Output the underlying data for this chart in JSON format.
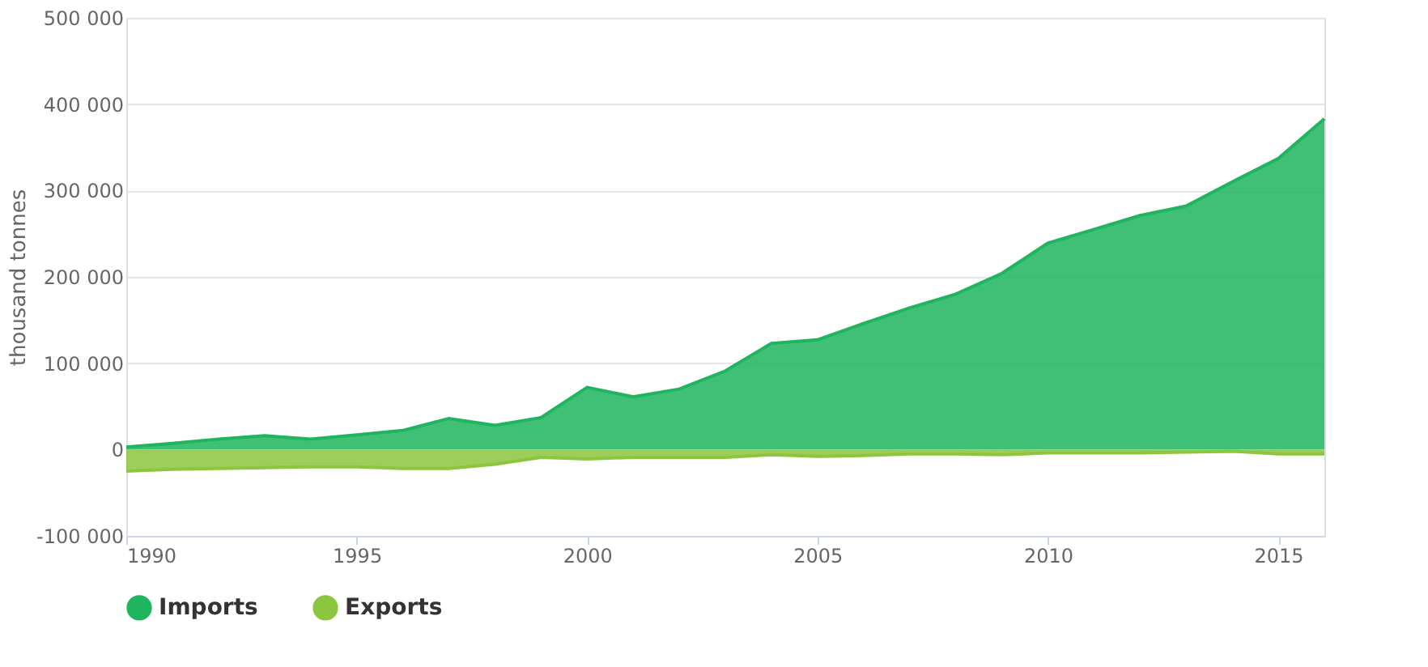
{
  "chart_data": {
    "type": "area",
    "ylabel": "thousand tonnes",
    "x": [
      1990,
      1991,
      1992,
      1993,
      1994,
      1995,
      1996,
      1997,
      1998,
      1999,
      2000,
      2001,
      2002,
      2003,
      2004,
      2005,
      2006,
      2007,
      2008,
      2009,
      2010,
      2011,
      2012,
      2013,
      2014,
      2015,
      2016
    ],
    "series": [
      {
        "name": "Imports",
        "color": "#1fb55f",
        "values": [
          3000,
          7000,
          12000,
          16000,
          12000,
          17000,
          22000,
          36000,
          28000,
          37000,
          72000,
          61000,
          70000,
          91000,
          123000,
          127000,
          146000,
          164000,
          180000,
          204000,
          239000,
          255000,
          271000,
          282000,
          310000,
          337000,
          383000
        ]
      },
      {
        "name": "Exports",
        "color": "#8cc63f",
        "values": [
          -25000,
          -23000,
          -22000,
          -21000,
          -20000,
          -20000,
          -22000,
          -22000,
          -17000,
          -9000,
          -11000,
          -9000,
          -9000,
          -9000,
          -6000,
          -8000,
          -7000,
          -5000,
          -5000,
          -6000,
          -4000,
          -4000,
          -4000,
          -3000,
          -2000,
          -5000,
          -5000
        ]
      }
    ],
    "xlim": [
      1990,
      2016
    ],
    "xticks": [
      1990,
      1995,
      2000,
      2005,
      2010,
      2015
    ],
    "ylim": [
      -100000,
      500000
    ],
    "yticks": [
      {
        "value": -100000,
        "label": "-100 000"
      },
      {
        "value": 0,
        "label": "0"
      },
      {
        "value": 100000,
        "label": "100 000"
      },
      {
        "value": 200000,
        "label": "200 000"
      },
      {
        "value": 300000,
        "label": "300 000"
      },
      {
        "value": 400000,
        "label": "400 000"
      },
      {
        "value": 500000,
        "label": "500 000"
      }
    ],
    "grid": "y",
    "legend": "bottom"
  }
}
